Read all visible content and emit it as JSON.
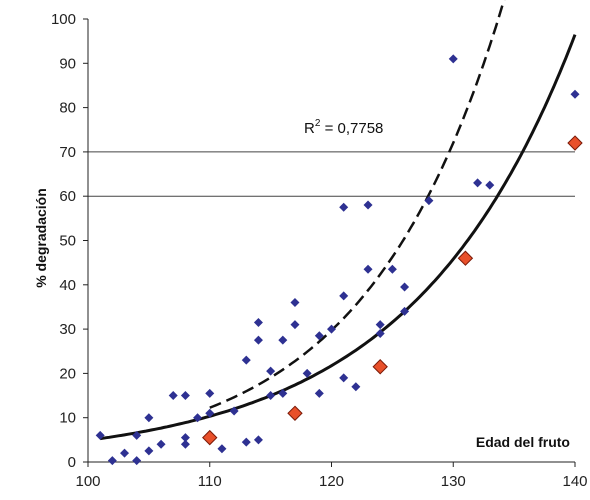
{
  "chart_data": {
    "type": "scatter",
    "ylabel": "% degradación",
    "xlabel": "Edad del fruto",
    "xlim": [
      100,
      140
    ],
    "ylim": [
      0,
      100
    ],
    "x_ticks": [
      "100",
      "110",
      "120",
      "130",
      "140"
    ],
    "y_ticks": [
      "0",
      "10",
      "20",
      "30",
      "40",
      "50",
      "60",
      "70",
      "80",
      "90",
      "100"
    ],
    "gridlines_y": [
      60,
      70
    ],
    "annotation": {
      "text_main": "R",
      "text_sup": "2",
      "text_value": " = 0,7758"
    },
    "colors": {
      "blue": "#2e3192",
      "red": "#e8502a",
      "red_border": "#7a1a08",
      "trend": "#111111"
    },
    "series": [
      {
        "marker": "blue-diamond",
        "points": [
          [
            101,
            6
          ],
          [
            102,
            0.3
          ],
          [
            103,
            2
          ],
          [
            104,
            0.3
          ],
          [
            104,
            6
          ],
          [
            105,
            2.5
          ],
          [
            105,
            10
          ],
          [
            106,
            4
          ],
          [
            107,
            15
          ],
          [
            108,
            15
          ],
          [
            108,
            4
          ],
          [
            108,
            5.5
          ],
          [
            109,
            10
          ],
          [
            110,
            11
          ],
          [
            110,
            15.5
          ],
          [
            111,
            3
          ],
          [
            112,
            11.5
          ],
          [
            113,
            4.5
          ],
          [
            113,
            23
          ],
          [
            114,
            5
          ],
          [
            114,
            27.5
          ],
          [
            114,
            31.5
          ],
          [
            115,
            15
          ],
          [
            115,
            20.5
          ],
          [
            116,
            15.5
          ],
          [
            116,
            27.5
          ],
          [
            117,
            31
          ],
          [
            117,
            36
          ],
          [
            118,
            20
          ],
          [
            119,
            15.5
          ],
          [
            119,
            28.5
          ],
          [
            120,
            30
          ],
          [
            121,
            19
          ],
          [
            121,
            37.5
          ],
          [
            121,
            57.5
          ],
          [
            122,
            17
          ],
          [
            123,
            43.5
          ],
          [
            123,
            58
          ],
          [
            124,
            29
          ],
          [
            124,
            31
          ],
          [
            125,
            43.5
          ],
          [
            126,
            34
          ],
          [
            126,
            39.5
          ],
          [
            128,
            59
          ],
          [
            130,
            91
          ],
          [
            132,
            63
          ],
          [
            133,
            62.5
          ],
          [
            140,
            83
          ]
        ]
      },
      {
        "marker": "red-diamond",
        "points": [
          [
            110,
            5.5
          ],
          [
            117,
            11
          ],
          [
            124,
            21.5
          ],
          [
            131,
            46
          ],
          [
            140,
            72
          ]
        ]
      }
    ],
    "trendlines": [
      {
        "style": "solid",
        "equation": "exponential",
        "a": 4.9,
        "b": 0.0745
      },
      {
        "style": "dashed",
        "equation": "exponential",
        "a": 5.05,
        "b": 0.0886,
        "x_range": [
          110,
          140
        ]
      }
    ]
  }
}
